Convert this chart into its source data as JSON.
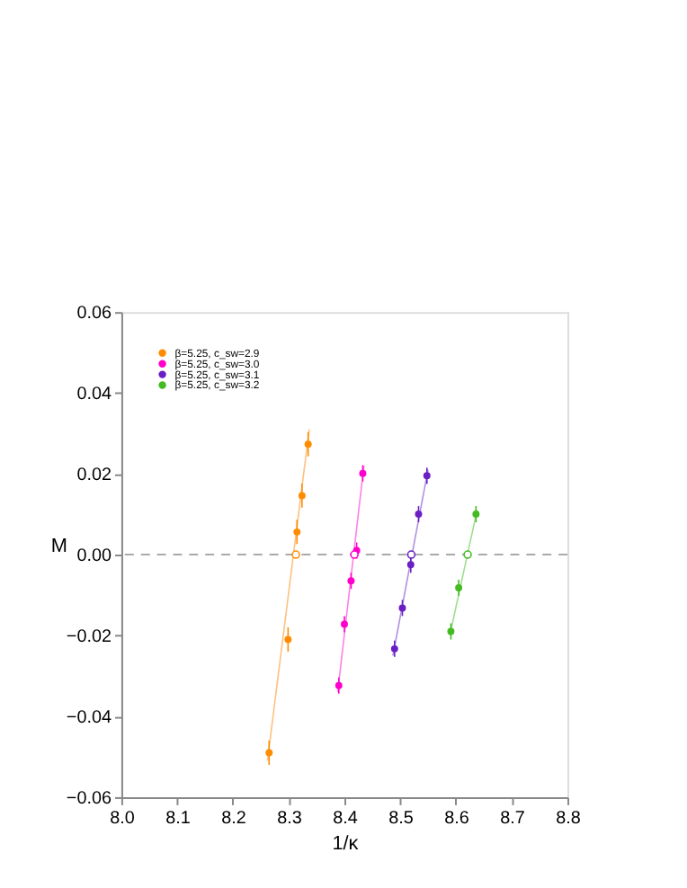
{
  "chart_data": {
    "type": "scatter",
    "xlabel": "1/κ",
    "ylabel": "M",
    "xlim": [
      8.0,
      8.8
    ],
    "xticks": [
      {
        "value": 8.0,
        "label": "8.0"
      },
      8.1,
      8.2,
      8.3,
      8.4,
      8.5,
      8.6,
      8.7,
      8.8
    ],
    "ylim": [
      -0.06,
      0.06
    ],
    "yticks": [
      -0.06,
      -0.04,
      -0.02,
      {
        "value": 0,
        "label": "0.00"
      },
      0.02,
      0.04,
      0.06
    ],
    "grid": false,
    "legend": "top left",
    "marker": "circle",
    "ref_lines": [
      {
        "axis": "y",
        "value": 0,
        "color": "#aaaaaa",
        "line_style": "dashed"
      }
    ],
    "series": [
      {
        "name": "β=5.25, c_sw=2.9",
        "color": "#ff8c00",
        "x": [
          8.265,
          8.299,
          8.315,
          8.324,
          8.335
        ],
        "values": [
          -0.049,
          -0.021,
          0.0056,
          0.0146,
          0.0273
        ],
        "errors": [
          0.003,
          0.003,
          0.003,
          0.003,
          0.003
        ]
      },
      {
        "name": "β=5.25, c_sw=3.0",
        "color": "#ff00cc",
        "x": [
          8.39,
          8.4,
          8.412,
          8.422,
          8.433
        ],
        "values": [
          -0.0324,
          -0.0172,
          -0.0065,
          0.001,
          0.0201
        ],
        "errors": [
          0.002,
          0.002,
          0.002,
          0.002,
          0.002
        ]
      },
      {
        "name": "β=5.25, c_sw=3.1",
        "color": "#6a1fc4",
        "x": [
          8.49,
          8.504,
          8.519,
          8.533,
          8.548
        ],
        "values": [
          -0.0233,
          -0.0132,
          -0.0025,
          0.01,
          0.0195
        ],
        "errors": [
          0.002,
          0.002,
          0.002,
          0.002,
          0.002
        ]
      },
      {
        "name": "β=5.25, c_sw=3.2",
        "color": "#44bb22",
        "x": [
          8.591,
          8.605,
          8.636
        ],
        "values": [
          -0.019,
          -0.0082,
          0.01
        ],
        "errors": [
          0.002,
          0.002,
          0.002
        ]
      },
      {
        "color": "#ff8c00",
        "x": [
          8.313
        ],
        "values": [
          0
        ]
      },
      {
        "color": "#ff00cc",
        "x": [
          8.418
        ],
        "values": [
          0
        ]
      },
      {
        "color": "#6a1fc4",
        "x": [
          8.52
        ],
        "values": [
          0
        ]
      },
      {
        "color": "#44bb22",
        "x": [
          8.621
        ],
        "values": [
          0
        ]
      },
      {
        "color": "#ffc080",
        "type": "line",
        "marker": "none",
        "x": [
          8.262,
          8.337
        ],
        "values": [
          -0.051,
          0.031
        ]
      },
      {
        "color": "#ff80e6",
        "type": "line",
        "marker": "none",
        "x": [
          8.388,
          8.435
        ],
        "values": [
          -0.034,
          0.022
        ]
      },
      {
        "color": "#b090e0",
        "type": "line",
        "marker": "none",
        "x": [
          8.487,
          8.55
        ],
        "values": [
          -0.025,
          0.021
        ]
      },
      {
        "color": "#a0dd90",
        "type": "line",
        "marker": "none",
        "x": [
          8.589,
          8.638
        ],
        "values": [
          -0.02,
          0.011
        ]
      }
    ]
  }
}
